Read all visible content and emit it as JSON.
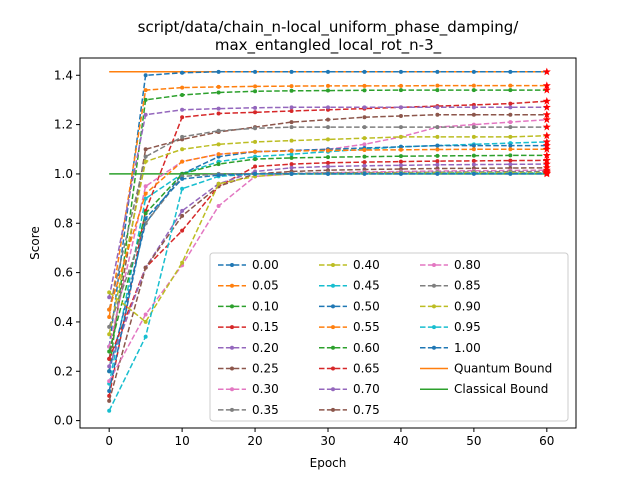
{
  "chart_data": {
    "type": "line",
    "title": "script/data/chain_n-local_uniform_phase_damping/",
    "subtitle": "max_entangled_local_rot_n-3_",
    "xlabel": "Epoch",
    "ylabel": "Score",
    "xlim": [
      -4,
      64
    ],
    "ylim": [
      -0.03,
      1.47
    ],
    "xticks": [
      "0",
      "10",
      "20",
      "30",
      "40",
      "50",
      "60"
    ],
    "yticks": [
      "0.0",
      "0.2",
      "0.4",
      "0.6",
      "0.8",
      "1.0",
      "1.2",
      "1.4"
    ],
    "grid": false,
    "legend_position": "lower-right",
    "x": [
      0,
      5,
      10,
      15,
      20,
      25,
      30,
      35,
      40,
      45,
      50,
      55,
      60
    ],
    "series": [
      {
        "name": "0.00",
        "color": "#1f77b4",
        "values": [
          0.3,
          1.4,
          1.41,
          1.414,
          1.414,
          1.414,
          1.414,
          1.414,
          1.414,
          1.414,
          1.414,
          1.414,
          1.414
        ]
      },
      {
        "name": "0.05",
        "color": "#ff7f0e",
        "values": [
          0.42,
          1.34,
          1.35,
          1.353,
          1.355,
          1.356,
          1.357,
          1.357,
          1.357,
          1.358,
          1.358,
          1.358,
          1.358
        ]
      },
      {
        "name": "0.10",
        "color": "#2ca02c",
        "values": [
          0.2,
          1.3,
          1.32,
          1.33,
          1.335,
          1.337,
          1.338,
          1.339,
          1.34,
          1.34,
          1.34,
          1.34,
          1.34
        ]
      },
      {
        "name": "0.15",
        "color": "#d62728",
        "values": [
          0.1,
          0.85,
          1.23,
          1.245,
          1.25,
          1.255,
          1.26,
          1.265,
          1.27,
          1.275,
          1.28,
          1.285,
          1.295
        ]
      },
      {
        "name": "0.20",
        "color": "#9467bd",
        "values": [
          0.5,
          1.24,
          1.26,
          1.265,
          1.268,
          1.27,
          1.27,
          1.27,
          1.27,
          1.27,
          1.27,
          1.27,
          1.27
        ]
      },
      {
        "name": "0.25",
        "color": "#8c564b",
        "values": [
          0.25,
          1.1,
          1.14,
          1.17,
          1.19,
          1.21,
          1.22,
          1.23,
          1.235,
          1.24,
          1.24,
          1.24,
          1.24
        ]
      },
      {
        "name": "0.30",
        "color": "#e377c2",
        "values": [
          0.3,
          0.95,
          1.05,
          1.08,
          1.09,
          1.095,
          1.1,
          1.12,
          1.15,
          1.19,
          1.2,
          1.21,
          1.22
        ]
      },
      {
        "name": "0.35",
        "color": "#7f7f7f",
        "values": [
          0.45,
          1.07,
          1.15,
          1.175,
          1.185,
          1.19,
          1.19,
          1.19,
          1.19,
          1.19,
          1.19,
          1.19,
          1.19
        ]
      },
      {
        "name": "0.40",
        "color": "#bcbd22",
        "values": [
          0.35,
          1.05,
          1.1,
          1.12,
          1.13,
          1.135,
          1.14,
          1.145,
          1.15,
          1.15,
          1.15,
          1.15,
          1.155
        ]
      },
      {
        "name": "0.45",
        "color": "#17becf",
        "values": [
          0.15,
          0.9,
          1.0,
          1.05,
          1.07,
          1.08,
          1.09,
          1.1,
          1.11,
          1.115,
          1.12,
          1.125,
          1.13
        ]
      },
      {
        "name": "0.50",
        "color": "#1f77b4",
        "values": [
          0.2,
          0.8,
          1.0,
          1.07,
          1.09,
          1.095,
          1.1,
          1.105,
          1.11,
          1.115,
          1.115,
          1.115,
          1.115
        ]
      },
      {
        "name": "0.55",
        "color": "#ff7f0e",
        "values": [
          0.45,
          0.92,
          1.05,
          1.08,
          1.09,
          1.093,
          1.095,
          1.097,
          1.098,
          1.099,
          1.1,
          1.1,
          1.1
        ]
      },
      {
        "name": "0.60",
        "color": "#2ca02c",
        "values": [
          0.28,
          0.84,
          1.0,
          1.04,
          1.06,
          1.065,
          1.068,
          1.07,
          1.072,
          1.073,
          1.074,
          1.075,
          1.075
        ]
      },
      {
        "name": "0.65",
        "color": "#d62728",
        "values": [
          0.25,
          0.62,
          0.77,
          0.95,
          1.03,
          1.04,
          1.045,
          1.048,
          1.05,
          1.052,
          1.053,
          1.054,
          1.055
        ]
      },
      {
        "name": "0.70",
        "color": "#9467bd",
        "values": [
          0.22,
          0.62,
          0.85,
          0.96,
          1.01,
          1.025,
          1.03,
          1.033,
          1.035,
          1.037,
          1.038,
          1.039,
          1.04
        ]
      },
      {
        "name": "0.75",
        "color": "#8c564b",
        "values": [
          0.08,
          0.62,
          0.83,
          0.95,
          1.0,
          1.01,
          1.015,
          1.018,
          1.02,
          1.022,
          1.023,
          1.024,
          1.025
        ]
      },
      {
        "name": "0.80",
        "color": "#e377c2",
        "values": [
          0.16,
          0.43,
          0.63,
          0.87,
          0.99,
          1.0,
          1.005,
          1.008,
          1.01,
          1.012,
          1.013,
          1.014,
          1.015
        ]
      },
      {
        "name": "0.85",
        "color": "#7f7f7f",
        "values": [
          0.38,
          0.8,
          0.99,
          1.0,
          1.0,
          1.002,
          1.004,
          1.005,
          1.006,
          1.007,
          1.008,
          1.009,
          1.01
        ]
      },
      {
        "name": "0.90",
        "color": "#bcbd22",
        "values": [
          0.52,
          0.4,
          0.64,
          0.96,
          0.99,
          1.0,
          1.001,
          1.002,
          1.003,
          1.004,
          1.005,
          1.005,
          1.005
        ]
      },
      {
        "name": "0.95",
        "color": "#17becf",
        "values": [
          0.04,
          0.34,
          0.94,
          0.99,
          1.0,
          1.0,
          1.0,
          1.001,
          1.001,
          1.002,
          1.002,
          1.002,
          1.002
        ]
      },
      {
        "name": "1.00",
        "color": "#1f77b4",
        "values": [
          0.12,
          0.82,
          0.98,
          0.995,
          1.0,
          1.0,
          1.0,
          1.0,
          1.0,
          1.0,
          1.0,
          1.0,
          1.0
        ]
      }
    ],
    "bounds": [
      {
        "name": "Quantum Bound",
        "color": "#ff7f0e",
        "value": 1.4142
      },
      {
        "name": "Classical Bound",
        "color": "#2ca02c",
        "value": 1.0
      }
    ]
  }
}
